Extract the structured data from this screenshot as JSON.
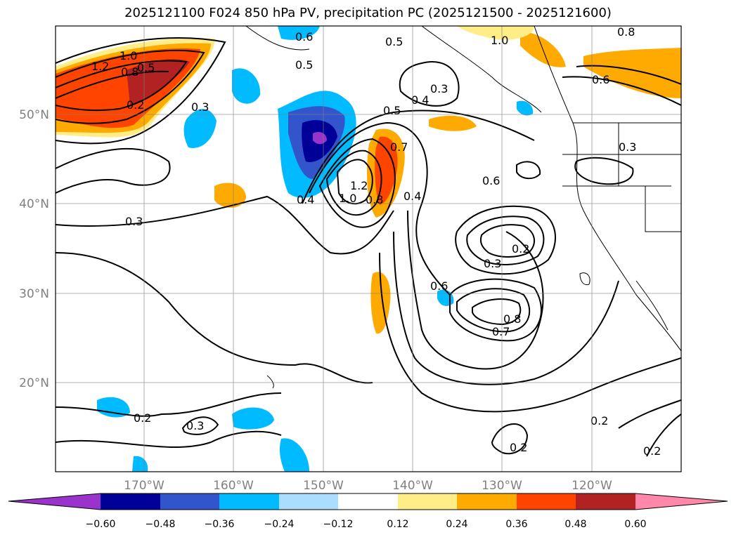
{
  "title": "2025121100 F024 850 hPa PV, precipitation PC (2025121500 - 2025121600)",
  "lon_labels": [
    "170°W",
    "160°W",
    "150°W",
    "140°W",
    "130°W",
    "120°W"
  ],
  "lat_labels": [
    "50°N",
    "40°N",
    "30°N",
    "20°N"
  ],
  "colorbar": {
    "ticks": [
      "−0.60",
      "−0.48",
      "−0.36",
      "−0.24",
      "−0.12",
      "0.12",
      "0.24",
      "0.36",
      "0.48",
      "0.60"
    ],
    "colors": [
      "#9933cc",
      "#000099",
      "#3355cc",
      "#00bbff",
      "#aaddff",
      "#ffffff",
      "#ffee88",
      "#ffaa00",
      "#ff4400",
      "#b22222",
      "#ff88aa"
    ]
  },
  "contour_labels": [
    "1.2",
    "1.0",
    "0.8",
    "0.5",
    "0.3",
    "0.2",
    "0.6",
    "0.5",
    "0.5",
    "0.4",
    "0.3",
    "1.0",
    "0.8",
    "0.6",
    "0.3",
    "0.5",
    "0.3",
    "0.4",
    "0.7",
    "1.2",
    "1.0",
    "0.8",
    "0.4",
    "0.6",
    "0.2",
    "0.3",
    "0.6",
    "0.8",
    "0.7",
    "0.2",
    "0.3",
    "0.2",
    "0.2",
    "0.2"
  ]
}
